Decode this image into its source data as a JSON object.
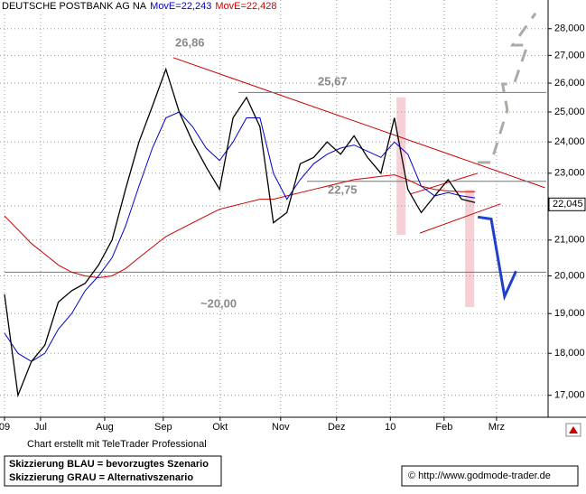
{
  "chart_data": {
    "type": "line",
    "title": "DEUTSCHE POSTBANK AG NA",
    "log_y": true,
    "grid": true,
    "ylim": [
      16.5,
      28.83
    ],
    "yticks": [
      {
        "value": 17,
        "label": "17,000"
      },
      {
        "value": 18,
        "label": "18,000"
      },
      {
        "value": 19,
        "label": "19,000"
      },
      {
        "value": 20,
        "label": "20,000"
      },
      {
        "value": 21,
        "label": "21,000"
      },
      {
        "value": 22,
        "label": "22,000"
      },
      {
        "value": 23,
        "label": "23,000"
      },
      {
        "value": 24,
        "label": "24,000"
      },
      {
        "value": 25,
        "label": "25,000"
      },
      {
        "value": 26,
        "label": "26,000"
      },
      {
        "value": 27,
        "label": "27,000"
      },
      {
        "value": 28,
        "label": "28,000"
      }
    ],
    "xlim": [
      0,
      40.3
    ],
    "xticks": [
      {
        "value": 0,
        "label": "09"
      },
      {
        "value": 2.68,
        "label": "Jul"
      },
      {
        "value": 7.45,
        "label": "Aug"
      },
      {
        "value": 11.81,
        "label": "Sep"
      },
      {
        "value": 16.04,
        "label": "Okt"
      },
      {
        "value": 20.54,
        "label": "Nov"
      },
      {
        "value": 24.7,
        "label": "Dez"
      },
      {
        "value": 28.7,
        "label": "10"
      },
      {
        "value": 32.7,
        "label": "Feb"
      },
      {
        "value": 36.6,
        "label": "Mrz"
      }
    ],
    "x": [
      0,
      1,
      2,
      3,
      4,
      5,
      6,
      7,
      8,
      9,
      10,
      11,
      12,
      13,
      14,
      15,
      16,
      17,
      18,
      19,
      20,
      21,
      22,
      23,
      24,
      25,
      26,
      27,
      28,
      29,
      30,
      31,
      32,
      33,
      34,
      35
    ],
    "series": [
      {
        "color": "#000000",
        "values": [
          19.5,
          17.0,
          17.8,
          18.2,
          19.3,
          19.6,
          19.8,
          20.3,
          21.0,
          22.5,
          24.0,
          25.2,
          26.5,
          25.0,
          24.0,
          23.2,
          22.5,
          24.8,
          25.5,
          24.5,
          21.5,
          21.8,
          23.3,
          23.5,
          24.0,
          23.6,
          24.2,
          23.5,
          23.0,
          24.8,
          22.5,
          21.8,
          22.3,
          22.8,
          22.2,
          22.1
        ]
      },
      {
        "name": "MovE=22,243",
        "color": "#0000cc",
        "values": [
          18.5,
          18.0,
          17.8,
          18.0,
          18.6,
          19.0,
          19.6,
          20.0,
          20.5,
          21.4,
          22.6,
          23.8,
          24.8,
          25.0,
          24.5,
          23.8,
          23.4,
          24.0,
          24.8,
          24.8,
          23.0,
          22.2,
          22.8,
          23.3,
          23.6,
          23.8,
          23.9,
          23.7,
          23.5,
          24.0,
          23.6,
          22.6,
          22.3,
          22.4,
          22.3,
          22.24
        ]
      },
      {
        "name": "MovE=22,428",
        "color": "#cc0000",
        "values": [
          21.7,
          21.3,
          20.9,
          20.6,
          20.3,
          20.1,
          20.0,
          19.95,
          20.0,
          20.2,
          20.5,
          20.8,
          21.1,
          21.3,
          21.5,
          21.7,
          21.9,
          22.0,
          22.1,
          22.2,
          22.2,
          22.3,
          22.4,
          22.5,
          22.6,
          22.7,
          22.8,
          22.85,
          22.9,
          22.95,
          22.8,
          22.6,
          22.5,
          22.45,
          22.43,
          22.43
        ]
      }
    ],
    "last_price": {
      "value": 22.045,
      "label": "22,045"
    },
    "highlights": [
      {
        "x": 29.5,
        "y": [
          21.15,
          25.5
        ],
        "color": "#f7d0d6"
      },
      {
        "x": 34.6,
        "y": [
          19.17,
          22.49
        ],
        "color": "#f7d0d6"
      }
    ],
    "lines": [
      {
        "color": "#cc0000",
        "width": 1,
        "x": [
          12.55,
          40.2
        ],
        "y": [
          26.92,
          22.55
        ]
      },
      {
        "color": "#cc0000",
        "width": 1,
        "x": [
          30.9,
          36.9
        ],
        "y": [
          21.2,
          22.06
        ]
      },
      {
        "color": "#cc0000",
        "width": 1,
        "x": [
          30.2,
          35.2
        ],
        "y": [
          22.36,
          23.0
        ]
      },
      {
        "color": "#777777",
        "width": 1,
        "x": [
          17.4,
          40.3
        ],
        "y": [
          25.67,
          25.67
        ]
      },
      {
        "color": "#777777",
        "width": 1,
        "x": [
          22.5,
          40.3
        ],
        "y": [
          22.75,
          22.75
        ]
      },
      {
        "color": "#777777",
        "width": 1,
        "x": [
          0,
          40.3
        ],
        "y": [
          20.1,
          20.1
        ]
      },
      {
        "color": "#1f3fcc",
        "width": 3,
        "x": [
          35.2,
          36.2,
          37.2,
          38.05
        ],
        "y": [
          21.67,
          21.61,
          19.45,
          20.13
        ]
      },
      {
        "color": "#a9aca4",
        "width": 3,
        "dashed": true,
        "x": [
          35.2,
          36.2,
          37.4,
          37.05,
          37.9,
          38.9,
          37.8,
          39.5
        ],
        "y": [
          23.34,
          23.34,
          25.07,
          25.97,
          25.97,
          27.38,
          27.38,
          28.59
        ]
      }
    ],
    "annotations": [
      "26,86",
      "25,67",
      "22,75",
      "~20,00"
    ],
    "credit": "Chart erstellt mit TeleTrader Professional",
    "legend_notes": [
      "Skizzierung BLAU = bevorzugtes Szenario",
      "Skizzierung GRAU = Alternativszenario"
    ],
    "source": "© http://www.godmode-trader.de"
  }
}
